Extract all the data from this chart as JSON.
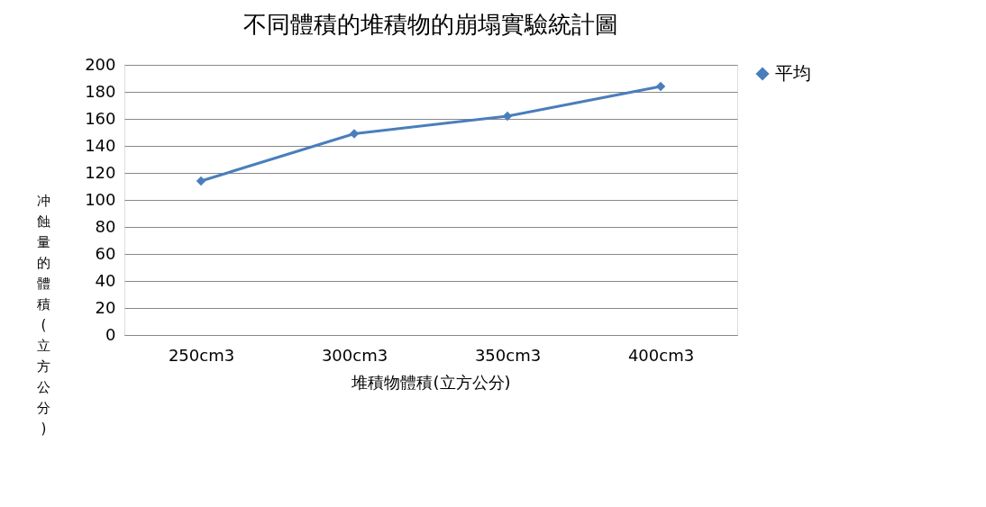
{
  "chart_data": {
    "type": "line",
    "title": "不同體積的堆積物的崩塌實驗統計圖",
    "xlabel": "堆積物體積(立方公分)",
    "ylabel": "冲蝕量的體積(立方公分)",
    "categories": [
      "250cm3",
      "300cm3",
      "350cm3",
      "400cm3"
    ],
    "series": [
      {
        "name": "平均",
        "color": "#4a7ebb",
        "values": [
          114,
          149,
          162,
          184
        ]
      }
    ],
    "ylim": [
      0,
      200
    ],
    "yticks": [
      0,
      20,
      40,
      60,
      80,
      100,
      120,
      140,
      160,
      180,
      200
    ],
    "grid": "y",
    "legend": "right",
    "marker": "diamond",
    "line_style": "solid"
  }
}
